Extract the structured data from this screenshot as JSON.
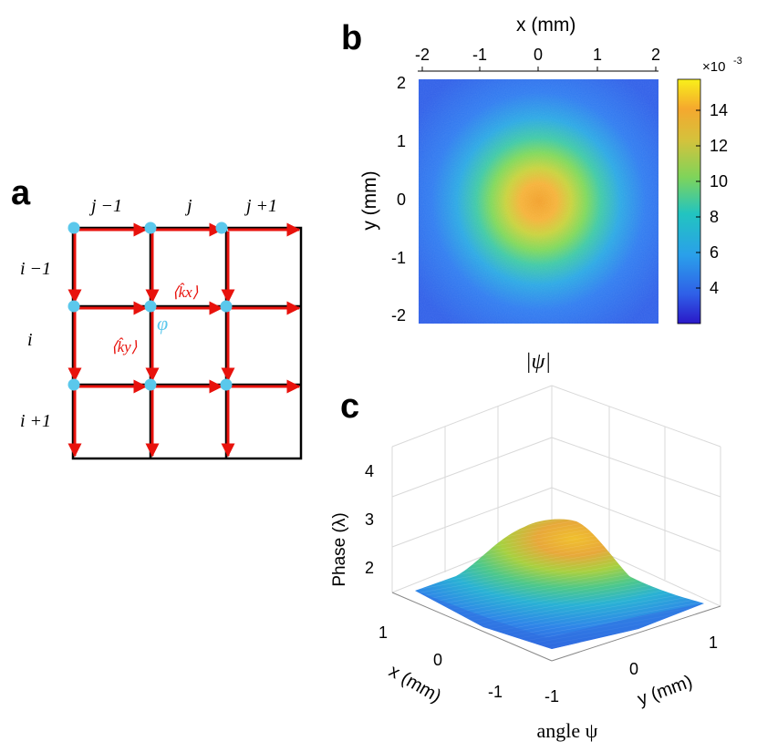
{
  "panels": {
    "a": {
      "label": "a",
      "columns": [
        "j −1",
        "j",
        "j +1"
      ],
      "rows": [
        "i −1",
        "i",
        "i +1"
      ],
      "kx_label": "⟨k̂x⟩",
      "ky_label": "⟨k̂y⟩",
      "phi_label": "φ"
    },
    "b": {
      "label": "b",
      "xlabel": "x (mm)",
      "ylabel": "y (mm)",
      "xticks": [
        "-2",
        "-1",
        "0",
        "1",
        "2"
      ],
      "yticks": [
        "2",
        "1",
        "0",
        "-1",
        "-2"
      ],
      "colorbar_multiplier": "×10",
      "colorbar_exponent": "-3",
      "colorbar_ticks": [
        "14",
        "12",
        "10",
        "8",
        "6",
        "4"
      ],
      "caption": "|ψ|"
    },
    "c": {
      "label": "c",
      "zlabel": "Phase (λ)",
      "zticks": [
        "4",
        "3",
        "2"
      ],
      "xlabel": "x (mm)",
      "xticks": [
        "1",
        "0",
        "-1"
      ],
      "ylabel": "y (mm)",
      "yticks": [
        "-1",
        "0",
        "1"
      ],
      "caption": "angle ψ"
    }
  },
  "colors": {
    "arrow": "#e8120c",
    "node": "#5bc8ec",
    "phi": "#5bc8ec",
    "kx": "#e8120c"
  },
  "chart_data": [
    {
      "type": "heatmap",
      "title": "",
      "xlabel": "x (mm)",
      "ylabel": "y (mm)",
      "xlim": [
        -2.1,
        2.1
      ],
      "ylim": [
        -2.1,
        2.1
      ],
      "colorbar_range": [
        0.0022,
        0.0155
      ],
      "peak_value": 0.0145,
      "peak_location": [
        0,
        0
      ],
      "edge_value": 0.0033
    },
    {
      "type": "area",
      "title": "",
      "xlabel": "x (mm)",
      "ylabel": "y (mm)",
      "zlabel": "Phase (λ)",
      "xlim": [
        -1.4,
        1.4
      ],
      "ylim": [
        -1.4,
        1.4
      ],
      "zlim": [
        1.3,
        4.3
      ],
      "peak_value": 3.4,
      "base_value": 1.6
    }
  ]
}
